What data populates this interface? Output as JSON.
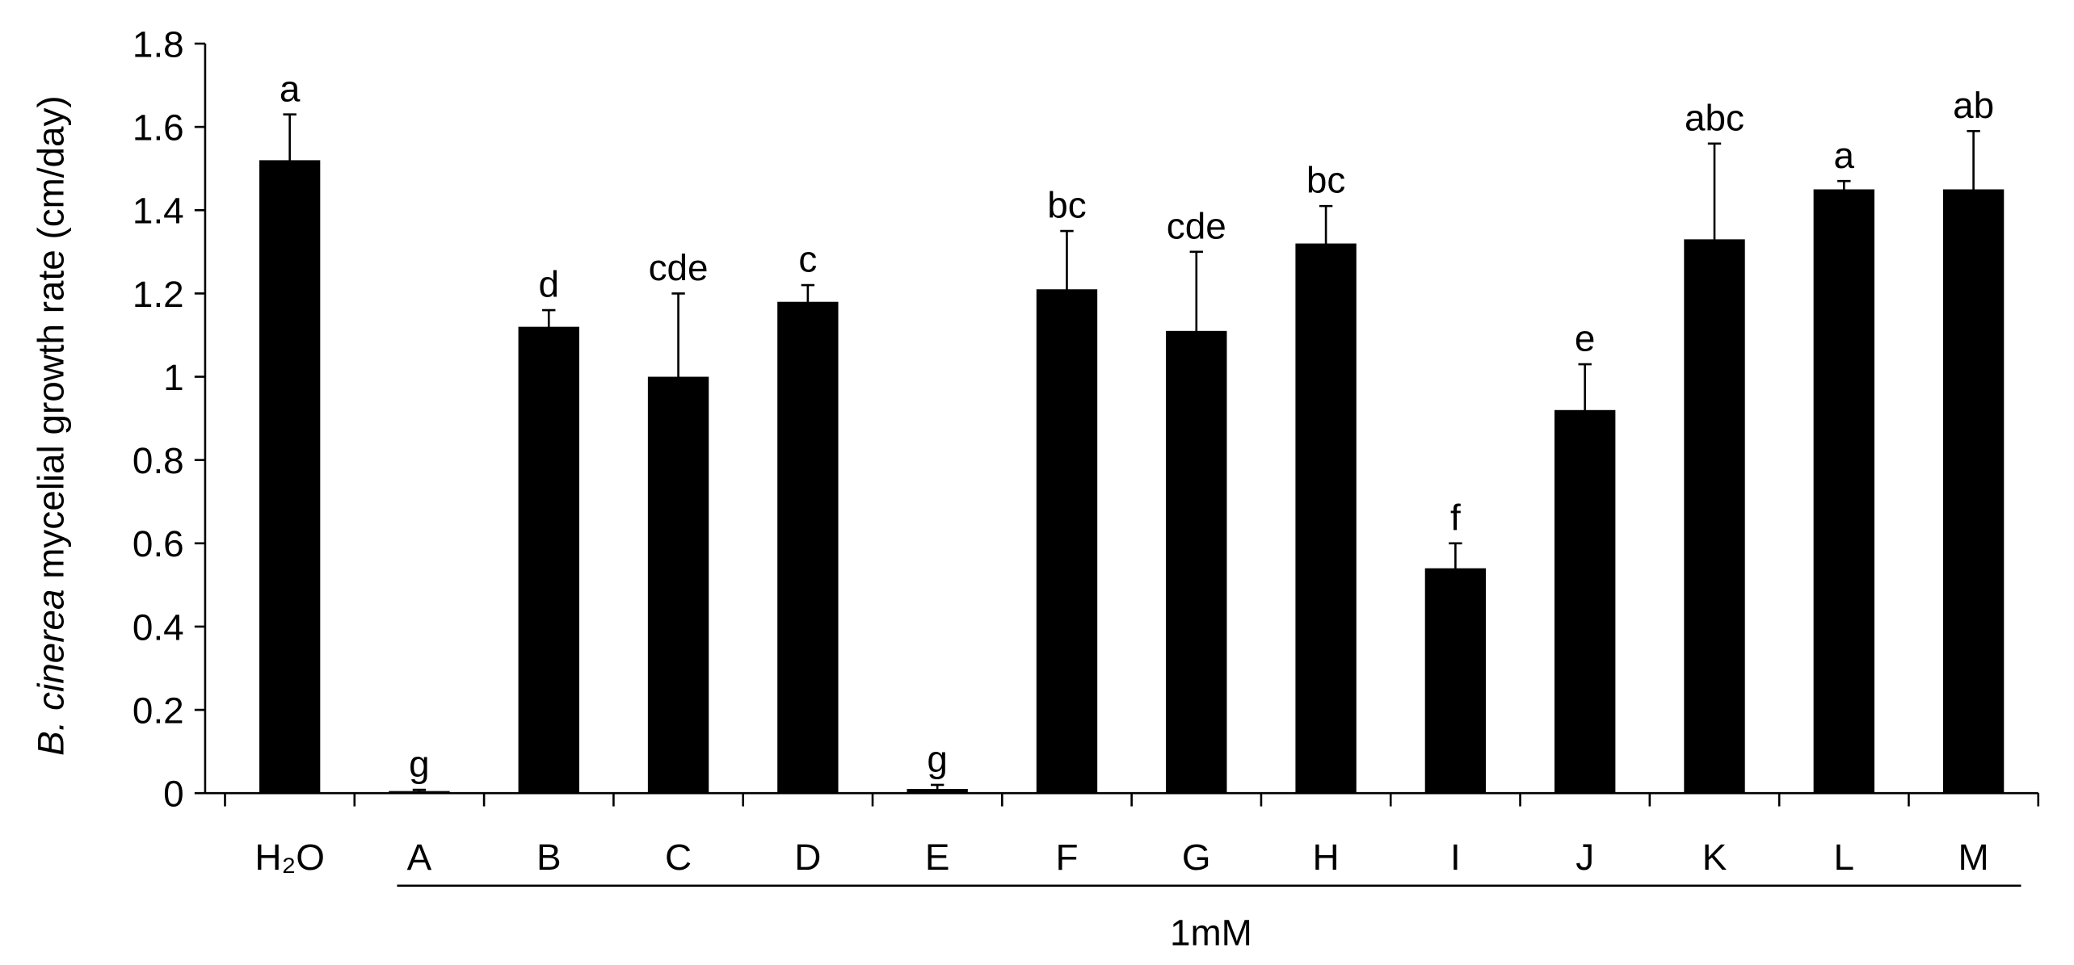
{
  "chart_data": {
    "type": "bar",
    "y_label_italic": "B. cinerea",
    "y_label": "mycelial growth rate (cm/day)",
    "categories": [
      "H₂O",
      "A",
      "B",
      "C",
      "D",
      "E",
      "F",
      "G",
      "H",
      "I",
      "J",
      "K",
      "L",
      "M"
    ],
    "group_label": "1mM",
    "values": [
      1.52,
      0.005,
      1.12,
      1.0,
      1.18,
      0.01,
      1.21,
      1.11,
      1.32,
      0.54,
      0.92,
      1.33,
      1.45,
      1.45
    ],
    "errors": [
      0.11,
      0.003,
      0.04,
      0.2,
      0.04,
      0.01,
      0.14,
      0.19,
      0.09,
      0.06,
      0.11,
      0.23,
      0.02,
      0.14
    ],
    "significance_letters": [
      "a",
      "g",
      "d",
      "cde",
      "c",
      "g",
      "bc",
      "cde",
      "bc",
      "f",
      "e",
      "abc",
      "a",
      "ab"
    ],
    "color": "#000000",
    "ylim": [
      0,
      1.8
    ],
    "yticks": [
      0,
      0.2,
      0.4,
      0.6,
      0.8,
      1,
      1.2,
      1.4,
      1.6,
      1.8
    ],
    "grid": false
  }
}
